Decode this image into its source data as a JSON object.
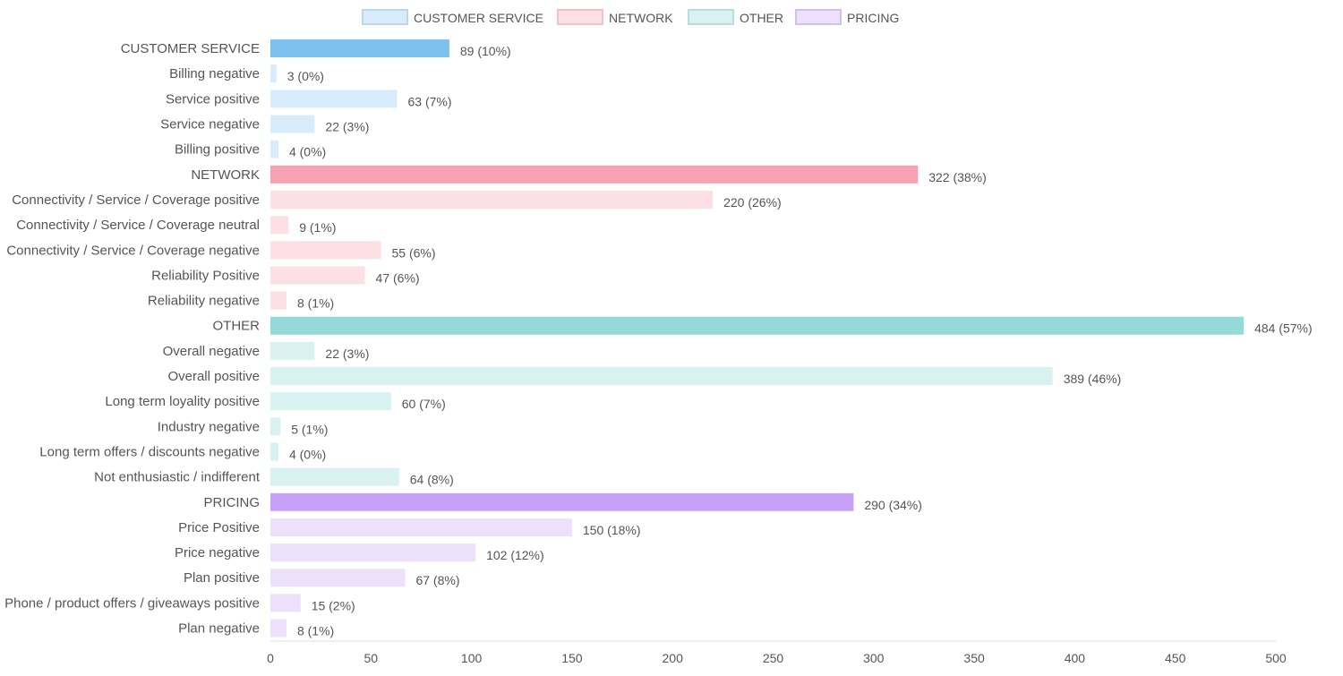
{
  "chart_data": {
    "type": "bar",
    "orientation": "horizontal",
    "legend_position": "top",
    "grid": false,
    "xlim": [
      0,
      500
    ],
    "x_ticks": [
      "0",
      "50",
      "100",
      "150",
      "200",
      "250",
      "300",
      "350",
      "400",
      "450",
      "500"
    ],
    "legend": [
      {
        "name": "CUSTOMER SERVICE",
        "color": "#d9ecfb",
        "border": "#bcd6ea"
      },
      {
        "name": "NETWORK",
        "color": "#fde0e5",
        "border": "#f0c2ca"
      },
      {
        "name": "OTHER",
        "color": "#d9f2f1",
        "border": "#b9dddc"
      },
      {
        "name": "PRICING",
        "color": "#ece0fb",
        "border": "#d2c0ea"
      }
    ],
    "group_colors": {
      "CUSTOMER SERVICE": {
        "main": "#7cc0ef",
        "light": "#d9ecfb"
      },
      "NETWORK": {
        "main": "#f8a1b3",
        "light": "#fde0e5"
      },
      "OTHER": {
        "main": "#96dad8",
        "light": "#d9f2f1"
      },
      "PRICING": {
        "main": "#c7a1f7",
        "light": "#ece0fb"
      }
    },
    "rows": [
      {
        "label": "CUSTOMER SERVICE",
        "value": 89,
        "display": "89 (10%)",
        "group": "CUSTOMER SERVICE",
        "is_group": true
      },
      {
        "label": "Billing negative",
        "value": 3,
        "display": "3 (0%)",
        "group": "CUSTOMER SERVICE",
        "is_group": false
      },
      {
        "label": "Service positive",
        "value": 63,
        "display": "63 (7%)",
        "group": "CUSTOMER SERVICE",
        "is_group": false
      },
      {
        "label": "Service negative",
        "value": 22,
        "display": "22 (3%)",
        "group": "CUSTOMER SERVICE",
        "is_group": false
      },
      {
        "label": "Billing positive",
        "value": 4,
        "display": "4 (0%)",
        "group": "CUSTOMER SERVICE",
        "is_group": false
      },
      {
        "label": "NETWORK",
        "value": 322,
        "display": "322 (38%)",
        "group": "NETWORK",
        "is_group": true
      },
      {
        "label": "Connectivity / Service / Coverage positive",
        "value": 220,
        "display": "220 (26%)",
        "group": "NETWORK",
        "is_group": false
      },
      {
        "label": "Connectivity / Service / Coverage neutral",
        "value": 9,
        "display": "9 (1%)",
        "group": "NETWORK",
        "is_group": false
      },
      {
        "label": "Connectivity / Service / Coverage negative",
        "value": 55,
        "display": "55 (6%)",
        "group": "NETWORK",
        "is_group": false
      },
      {
        "label": "Reliability Positive",
        "value": 47,
        "display": "47 (6%)",
        "group": "NETWORK",
        "is_group": false
      },
      {
        "label": "Reliability negative",
        "value": 8,
        "display": "8 (1%)",
        "group": "NETWORK",
        "is_group": false
      },
      {
        "label": "OTHER",
        "value": 484,
        "display": "484 (57%)",
        "group": "OTHER",
        "is_group": true
      },
      {
        "label": "Overall negative",
        "value": 22,
        "display": "22 (3%)",
        "group": "OTHER",
        "is_group": false
      },
      {
        "label": "Overall positive",
        "value": 389,
        "display": "389 (46%)",
        "group": "OTHER",
        "is_group": false
      },
      {
        "label": "Long term loyality positive",
        "value": 60,
        "display": "60 (7%)",
        "group": "OTHER",
        "is_group": false
      },
      {
        "label": "Industry negative",
        "value": 5,
        "display": "5 (1%)",
        "group": "OTHER",
        "is_group": false
      },
      {
        "label": "Long term offers / discounts negative",
        "value": 4,
        "display": "4 (0%)",
        "group": "OTHER",
        "is_group": false
      },
      {
        "label": "Not enthusiastic / indifferent",
        "value": 64,
        "display": "64 (8%)",
        "group": "OTHER",
        "is_group": false
      },
      {
        "label": "PRICING",
        "value": 290,
        "display": "290 (34%)",
        "group": "PRICING",
        "is_group": true
      },
      {
        "label": "Price Positive",
        "value": 150,
        "display": "150 (18%)",
        "group": "PRICING",
        "is_group": false
      },
      {
        "label": "Price negative",
        "value": 102,
        "display": "102 (12%)",
        "group": "PRICING",
        "is_group": false
      },
      {
        "label": "Plan positive",
        "value": 67,
        "display": "67 (8%)",
        "group": "PRICING",
        "is_group": false
      },
      {
        "label": "Phone / product offers / giveaways positive",
        "value": 15,
        "display": "15 (2%)",
        "group": "PRICING",
        "is_group": false
      },
      {
        "label": "Plan negative",
        "value": 8,
        "display": "8 (1%)",
        "group": "PRICING",
        "is_group": false
      }
    ]
  }
}
